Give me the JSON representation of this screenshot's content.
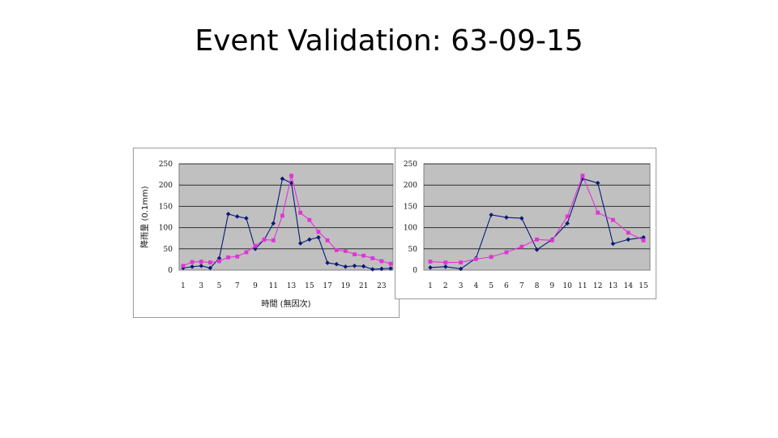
{
  "slide": {
    "title": "Event Validation: 63-09-15"
  },
  "chart_data": [
    {
      "type": "line",
      "title": "",
      "xlabel": "時間 (無因次)",
      "ylabel": "降雨量 (0.1mm)",
      "xlim": [
        1,
        24
      ],
      "ylim": [
        0,
        250
      ],
      "yticks": [
        0,
        50,
        100,
        150,
        200,
        250
      ],
      "xticks": [
        1,
        3,
        5,
        7,
        9,
        11,
        13,
        15,
        17,
        19,
        21,
        23
      ],
      "grid": true,
      "x": [
        1,
        2,
        3,
        4,
        5,
        6,
        7,
        8,
        9,
        10,
        11,
        12,
        13,
        14,
        15,
        16,
        17,
        18,
        19,
        20,
        21,
        22,
        23,
        24
      ],
      "series": [
        {
          "color": "#0a1a7a",
          "marker": "diamond",
          "values": [
            5,
            8,
            10,
            5,
            28,
            132,
            126,
            122,
            50,
            72,
            110,
            215,
            205,
            63,
            72,
            77,
            17,
            14,
            8,
            10,
            9,
            2,
            3,
            4
          ]
        },
        {
          "color": "#e233d6",
          "marker": "square",
          "values": [
            10,
            19,
            20,
            18,
            21,
            30,
            32,
            42,
            57,
            72,
            70,
            128,
            222,
            135,
            118,
            90,
            70,
            47,
            45,
            37,
            34,
            28,
            21,
            15
          ]
        }
      ]
    },
    {
      "type": "line",
      "title": "",
      "xlabel": "",
      "ylabel": "",
      "xlim": [
        1,
        15
      ],
      "ylim": [
        0,
        250
      ],
      "yticks": [
        0,
        50,
        100,
        150,
        200,
        250
      ],
      "xticks": [
        1,
        2,
        3,
        4,
        5,
        6,
        7,
        8,
        9,
        10,
        11,
        12,
        13,
        14,
        15
      ],
      "grid": true,
      "x": [
        1,
        2,
        3,
        4,
        5,
        6,
        7,
        8,
        9,
        10,
        11,
        12,
        13,
        14,
        15
      ],
      "series": [
        {
          "color": "#0a1a7a",
          "marker": "diamond",
          "values": [
            6,
            8,
            3,
            28,
            130,
            124,
            122,
            48,
            72,
            110,
            215,
            205,
            62,
            72,
            77
          ]
        },
        {
          "color": "#e233d6",
          "marker": "square",
          "values": [
            20,
            18,
            18,
            26,
            31,
            42,
            55,
            72,
            70,
            126,
            222,
            135,
            118,
            88,
            70
          ]
        }
      ]
    }
  ]
}
